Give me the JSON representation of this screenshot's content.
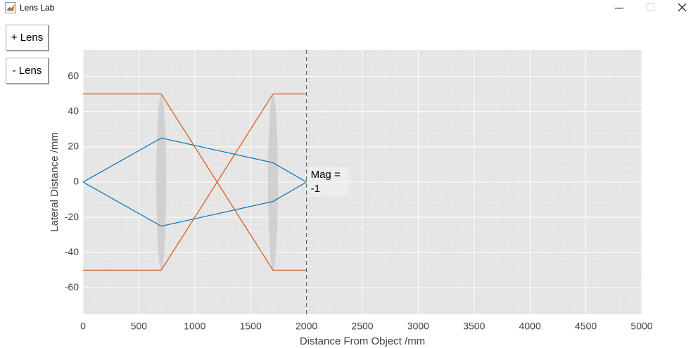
{
  "window": {
    "title": "Lens Lab"
  },
  "buttons": [
    "+ Lens",
    "- Lens"
  ],
  "chart_data": {
    "type": "line",
    "xlabel": "Distance From Object /mm",
    "ylabel": "Lateral Distance /mm",
    "xlim": [
      0,
      5000
    ],
    "ylim": [
      -75,
      75
    ],
    "xticks": [
      0,
      500,
      1000,
      1500,
      2000,
      2500,
      3000,
      3500,
      4000,
      4500,
      5000
    ],
    "yticks": [
      -60,
      -40,
      -20,
      0,
      20,
      40,
      60
    ],
    "grid": true,
    "minor_grid": true,
    "series": [
      {
        "color": "#d95319",
        "x": [
          0,
          700,
          1700,
          2000
        ],
        "values": [
          50,
          50,
          -50,
          -50
        ]
      },
      {
        "color": "#d95319",
        "x": [
          0,
          700,
          1700,
          2000
        ],
        "values": [
          -50,
          -50,
          50,
          50
        ]
      },
      {
        "color": "#0072bd",
        "x": [
          0,
          700,
          1700,
          2000
        ],
        "values": [
          0,
          25,
          11,
          0
        ]
      },
      {
        "color": "#0072bd",
        "x": [
          0,
          700,
          1700,
          2000
        ],
        "values": [
          0,
          -25,
          -11,
          0
        ]
      }
    ],
    "lenses": [
      {
        "x": 700,
        "half_height": 50
      },
      {
        "x": 1700,
        "half_height": 50
      }
    ],
    "image_plane": 2000,
    "annotation": [
      "Mag =",
      "-1"
    ]
  }
}
